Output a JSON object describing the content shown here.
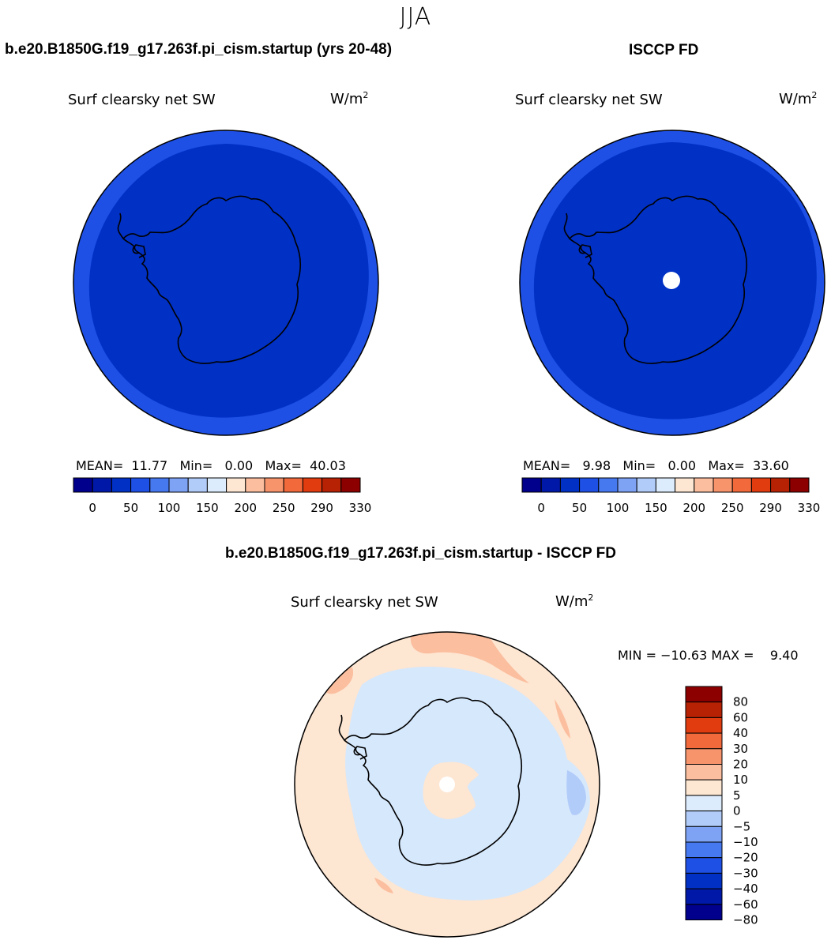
{
  "season": "JJA",
  "panels": [
    {
      "title": "b.e20.B1850G.f19_g17.263f.pi_cism.startup (yrs 20-48)",
      "variable": "Surf clearsky net SW",
      "units_base": "W/m",
      "units_exp": "2",
      "mean_label": "MEAN=",
      "mean": "11.77",
      "min_label": "Min=",
      "min": "0.00",
      "max_label": "Max=",
      "max": "40.03"
    },
    {
      "title": "ISCCP FD",
      "variable": "Surf clearsky net SW",
      "units_base": "W/m",
      "units_exp": "2",
      "mean_label": "MEAN=",
      "mean": "9.98",
      "min_label": "Min=",
      "min": "0.00",
      "max_label": "Max=",
      "max": "33.60"
    },
    {
      "title": "b.e20.B1850G.f19_g17.263f.pi_cism.startup - ISCCP FD",
      "variable": "Surf clearsky net SW",
      "units_base": "W/m",
      "units_exp": "2",
      "minmax_text": "MIN = −10.63 MAX =    9.40"
    }
  ],
  "horizontal_colorbar": {
    "colors": [
      "#00008c",
      "#0018a8",
      "#0030c4",
      "#1e50e6",
      "#4678f0",
      "#7ea2f4",
      "#b2ccfa",
      "#dcecfc",
      "#fde6d2",
      "#fbbe9e",
      "#f8946c",
      "#f26a3c",
      "#e03c10",
      "#b82204",
      "#8c0000"
    ],
    "tick_labels": [
      "0",
      "50",
      "100",
      "150",
      "200",
      "250",
      "290",
      "330"
    ]
  },
  "vertical_colorbar": {
    "colors_top_to_bottom": [
      "#8c0000",
      "#b82204",
      "#e03c10",
      "#f26a3c",
      "#f8946c",
      "#fbbe9e",
      "#fde6d2",
      "#dcecfc",
      "#b2ccfa",
      "#7ea2f4",
      "#4678f0",
      "#1e50e6",
      "#0030c4",
      "#0018a8",
      "#00008c"
    ],
    "tick_labels": [
      "80",
      "60",
      "40",
      "30",
      "20",
      "10",
      "5",
      "0",
      "−5",
      "−10",
      "−20",
      "−30",
      "−40",
      "−60",
      "−80"
    ]
  },
  "map_colors": {
    "deep_blue": "#0030c4",
    "outer_blue": "#1e50e6",
    "diff_light_blue": "#d6e8fc",
    "diff_peach": "#fde6d2",
    "diff_salmon": "#fbbe9e",
    "diff_mid_blue": "#b2ccfa"
  }
}
